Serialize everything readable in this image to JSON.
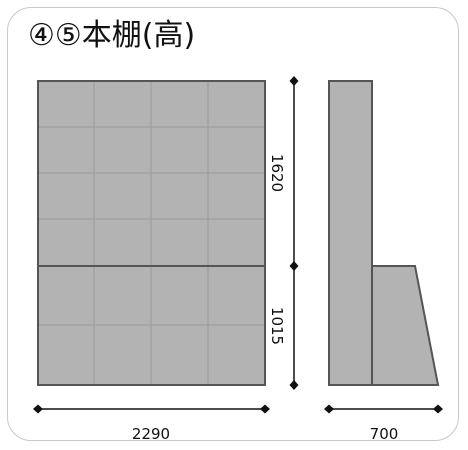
{
  "title": "④⑤本棚(高)",
  "dimensions": {
    "width_front": "2290",
    "depth_side": "700",
    "height_upper": "1620",
    "height_lower": "1015"
  },
  "colors": {
    "panel_fill": "#b3b3b3",
    "panel_edge": "#555555",
    "grid_line": "#9a9a9a",
    "dimension_line": "#111111",
    "card_border": "#c8c8c8"
  }
}
